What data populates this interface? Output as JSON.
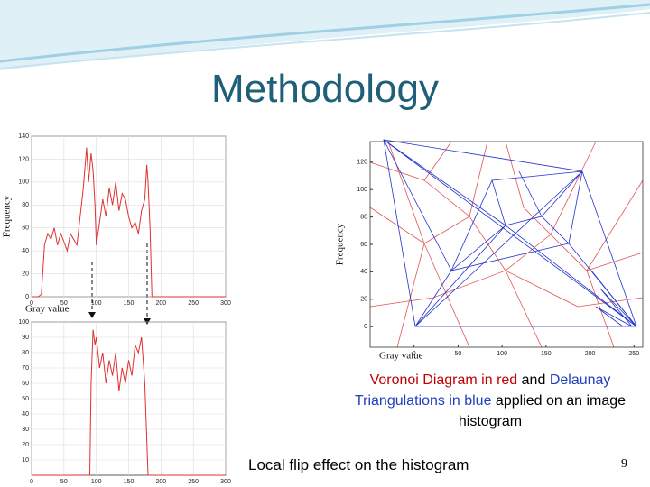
{
  "title": "Methodology",
  "caption": [
    {
      "text": "Voronoi Diagram in red",
      "color": "#c00000"
    },
    {
      "text": "and",
      "color": "#000000"
    },
    {
      "text": "Delaunay Triangulations in blue",
      "color": "#1f3fbf"
    },
    {
      "text": "applied on an image histogram",
      "color": "#000000"
    }
  ],
  "footer_text": "Local flip effect on the histogram",
  "page_number": "9",
  "chart_data": [
    {
      "type": "line",
      "xlabel": "Gray value",
      "ylabel": "Frequency",
      "color": "#e03030",
      "grid": true,
      "x": [
        0,
        10,
        15,
        20,
        25,
        30,
        35,
        40,
        45,
        50,
        55,
        60,
        65,
        70,
        75,
        80,
        85,
        88,
        92,
        95,
        98,
        100,
        105,
        110,
        115,
        120,
        125,
        130,
        135,
        140,
        145,
        150,
        155,
        160,
        165,
        170,
        175,
        178,
        180,
        183,
        186,
        190,
        200,
        250,
        300
      ],
      "values": [
        0,
        0,
        2,
        45,
        55,
        50,
        60,
        45,
        55,
        48,
        40,
        55,
        50,
        45,
        70,
        95,
        130,
        100,
        125,
        110,
        80,
        45,
        65,
        85,
        70,
        95,
        80,
        100,
        75,
        90,
        85,
        70,
        60,
        65,
        55,
        75,
        85,
        115,
        100,
        60,
        0,
        0,
        0,
        0,
        0
      ],
      "xlim": [
        0,
        300
      ],
      "ylim": [
        0,
        140
      ],
      "xticks": [
        0,
        50,
        100,
        150,
        200,
        250,
        300
      ],
      "yticks": [
        0,
        20,
        40,
        60,
        80,
        100,
        120,
        140
      ]
    },
    {
      "type": "line",
      "color": "#e03030",
      "grid": true,
      "x": [
        0,
        90,
        92,
        95,
        98,
        100,
        105,
        110,
        115,
        120,
        125,
        130,
        135,
        140,
        145,
        150,
        155,
        160,
        165,
        170,
        175,
        180,
        185,
        190,
        300
      ],
      "values": [
        0,
        0,
        60,
        95,
        85,
        90,
        70,
        80,
        60,
        75,
        65,
        80,
        55,
        70,
        60,
        75,
        65,
        85,
        80,
        90,
        60,
        0,
        0,
        0,
        0
      ],
      "xlim": [
        0,
        300
      ],
      "ylim": [
        0,
        100
      ],
      "xticks": [
        0,
        50,
        100,
        150,
        200,
        250,
        300
      ],
      "yticks": [
        10,
        20,
        30,
        40,
        50,
        60,
        70,
        80,
        90,
        100
      ]
    },
    {
      "type": "voronoi",
      "xlabel": "Gray value",
      "ylabel": "Frequency",
      "grid": false,
      "xlim": [
        -50,
        260
      ],
      "ylim": [
        -15,
        135
      ],
      "xticks": [
        0,
        50,
        100,
        150,
        200,
        250
      ],
      "yticks": [
        0,
        20,
        40,
        60,
        80,
        100,
        120
      ]
    }
  ]
}
